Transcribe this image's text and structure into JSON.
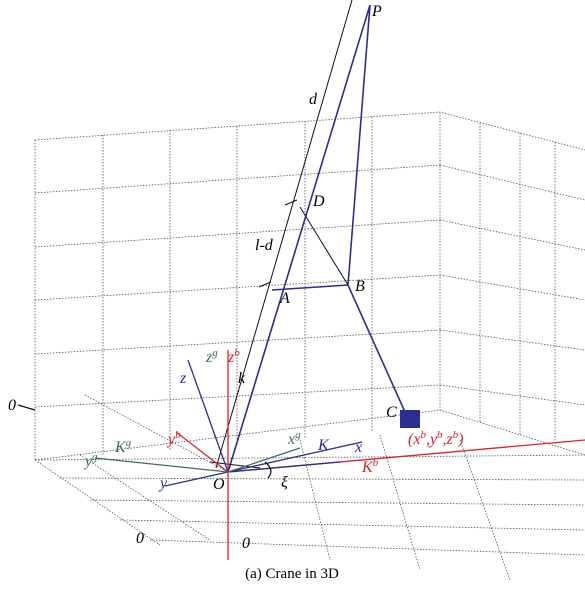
{
  "points": {
    "P": "P",
    "D": "D",
    "B": "B",
    "A": "A",
    "O": "O",
    "C": "C"
  },
  "dimensions": {
    "d": "d",
    "l_minus_d": "l-d",
    "k": "k"
  },
  "angle": "ξ",
  "axes": {
    "z": "z",
    "x": "x",
    "y": "y",
    "K": "K",
    "zg": {
      "base": "z",
      "sup": "g"
    },
    "zb": {
      "base": "z",
      "sup": "b"
    },
    "yg": {
      "base": "y",
      "sup": "g"
    },
    "Kg": {
      "base": "K",
      "sup": "g"
    },
    "yb": {
      "base": "y",
      "sup": "b"
    },
    "xg": {
      "base": "x",
      "sup": "g"
    },
    "Kb": {
      "base": "K",
      "sup": "b"
    }
  },
  "coordinates": [
    "(x",
    "b",
    ",y",
    "b",
    ",z",
    "b",
    ")"
  ],
  "zero_labels": [
    "0",
    "0",
    "0"
  ],
  "caption": "(a) Crane in 3D"
}
